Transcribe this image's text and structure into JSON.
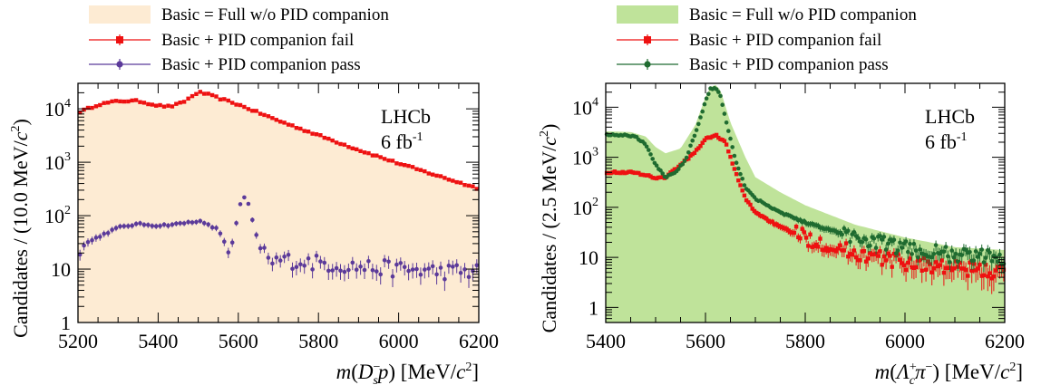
{
  "figure": {
    "panels": [
      {
        "id": "left",
        "legend": [
          {
            "label": "Basic = Full w/o PID companion",
            "style": "fill",
            "color": "#fdebd3"
          },
          {
            "label": "Basic + PID companion fail",
            "style": "errorbar-square",
            "color": "#ee1111"
          },
          {
            "label": "Basic + PID companion pass",
            "style": "errorbar-circle",
            "color": "#5b3a9a"
          }
        ],
        "annotation": {
          "experiment": "LHCb",
          "lumi": "6 fb",
          "lumi_sup": "-1"
        },
        "ylabel_pre": "Candidates / (10.0 MeV/",
        "ylabel_c": "c",
        "ylabel_sup": "2",
        "ylabel_post": ")",
        "xlabel_parts": [
          "m",
          "(",
          "D",
          "−",
          "s",
          "p",
          ") [MeV/",
          "c",
          "2",
          "]"
        ]
      },
      {
        "id": "right",
        "legend": [
          {
            "label": "Basic = Full w/o PID companion",
            "style": "fill",
            "color": "#bfe39a"
          },
          {
            "label": "Basic + PID companion fail",
            "style": "errorbar-square",
            "color": "#ee1111"
          },
          {
            "label": "Basic + PID companion pass",
            "style": "errorbar-circle",
            "color": "#1f6b30"
          }
        ],
        "annotation": {
          "experiment": "LHCb",
          "lumi": "6 fb",
          "lumi_sup": "-1"
        },
        "ylabel_pre": "Candidates / (2.5 MeV/",
        "ylabel_c": "c",
        "ylabel_sup": "2",
        "ylabel_post": ")",
        "xlabel_parts": [
          "m",
          "(",
          "Λ",
          "+",
          "c",
          "π",
          "−",
          ") [MeV/",
          "c",
          "2",
          "]"
        ]
      }
    ]
  },
  "chart_data": [
    {
      "type": "area",
      "panel": "left",
      "xlabel": "m(D_s^- p) [MeV/c^2]",
      "ylabel": "Candidates / (10.0 MeV/c^2)",
      "xlim": [
        5200,
        6200
      ],
      "ylim": [
        1,
        30000
      ],
      "yscale": "log",
      "xticks": [
        5200,
        5400,
        5600,
        5800,
        6000,
        6200
      ],
      "yticks": [
        {
          "v": 1,
          "label": "1"
        },
        {
          "v": 10,
          "label": "10"
        },
        {
          "v": 100,
          "label": "10",
          "sup": "2"
        },
        {
          "v": 1000,
          "label": "10",
          "sup": "3"
        },
        {
          "v": 10000,
          "label": "10",
          "sup": "4"
        }
      ],
      "series": [
        {
          "name": "Basic = Full w/o PID companion",
          "kind": "fill",
          "color": "#fdebd3",
          "x": [
            5200,
            5250,
            5300,
            5350,
            5400,
            5430,
            5460,
            5500,
            5520,
            5550,
            5600,
            5700,
            5800,
            5900,
            6000,
            6100,
            6200
          ],
          "y": [
            8500,
            12000,
            14000,
            14000,
            11500,
            11000,
            13000,
            20500,
            19000,
            16000,
            12000,
            6000,
            3200,
            1700,
            950,
            550,
            320
          ]
        },
        {
          "name": "Basic + PID companion fail",
          "kind": "points",
          "color": "#ee1111",
          "x": [
            5200,
            5250,
            5300,
            5350,
            5400,
            5430,
            5460,
            5500,
            5520,
            5550,
            5600,
            5700,
            5800,
            5900,
            6000,
            6100,
            6200
          ],
          "y": [
            8500,
            12000,
            14000,
            14000,
            11500,
            11000,
            13000,
            20500,
            19000,
            16000,
            12000,
            6000,
            3200,
            1700,
            950,
            550,
            320
          ]
        },
        {
          "name": "Basic + PID companion pass",
          "kind": "points",
          "color": "#5b3a9a",
          "x": [
            5200,
            5250,
            5300,
            5350,
            5400,
            5450,
            5500,
            5550,
            5580,
            5600,
            5610,
            5620,
            5630,
            5640,
            5660,
            5680,
            5700,
            5800,
            5900,
            6000,
            6100,
            6200
          ],
          "y": [
            25,
            40,
            60,
            70,
            65,
            70,
            80,
            55,
            20,
            110,
            230,
            210,
            130,
            50,
            25,
            12,
            15,
            13,
            11,
            10,
            9,
            9
          ]
        }
      ]
    },
    {
      "type": "area",
      "panel": "right",
      "xlabel": "m(Λ_c^+ π^-) [MeV/c^2]",
      "ylabel": "Candidates / (2.5 MeV/c^2)",
      "xlim": [
        5400,
        6200
      ],
      "ylim": [
        0.5,
        30000
      ],
      "yscale": "log",
      "xticks": [
        5400,
        5600,
        5800,
        6000,
        6200
      ],
      "yticks": [
        {
          "v": 1,
          "label": "1"
        },
        {
          "v": 10,
          "label": "10"
        },
        {
          "v": 100,
          "label": "10",
          "sup": "2"
        },
        {
          "v": 1000,
          "label": "10",
          "sup": "3"
        },
        {
          "v": 10000,
          "label": "10",
          "sup": "4"
        }
      ],
      "series": [
        {
          "name": "Basic = Full w/o PID companion",
          "kind": "fill",
          "color": "#bfe39a",
          "x": [
            5400,
            5450,
            5480,
            5500,
            5520,
            5550,
            5580,
            5600,
            5610,
            5620,
            5630,
            5650,
            5680,
            5700,
            5750,
            5800,
            5900,
            6000,
            6100,
            6200
          ],
          "y": [
            3300,
            3200,
            2600,
            1600,
            1200,
            1500,
            4500,
            16000,
            25000,
            28000,
            22000,
            5000,
            1000,
            400,
            200,
            110,
            45,
            25,
            16,
            14
          ]
        },
        {
          "name": "Basic + PID companion fail",
          "kind": "points",
          "color": "#ee1111",
          "x": [
            5400,
            5450,
            5480,
            5500,
            5520,
            5550,
            5580,
            5600,
            5620,
            5640,
            5660,
            5680,
            5700,
            5750,
            5800,
            5900,
            6000,
            6100,
            6200
          ],
          "y": [
            500,
            500,
            450,
            380,
            400,
            700,
            1300,
            2300,
            2800,
            2000,
            500,
            150,
            80,
            40,
            25,
            12,
            8,
            6,
            5
          ]
        },
        {
          "name": "Basic + PID companion pass",
          "kind": "points",
          "color": "#1f6b30",
          "x": [
            5400,
            5430,
            5460,
            5480,
            5500,
            5520,
            5540,
            5560,
            5580,
            5600,
            5610,
            5620,
            5630,
            5640,
            5660,
            5680,
            5700,
            5750,
            5800,
            5900,
            6000,
            6100,
            6200
          ],
          "y": [
            2800,
            2800,
            2600,
            1800,
            700,
            400,
            500,
            900,
            3000,
            13000,
            23000,
            25000,
            17000,
            6000,
            900,
            250,
            150,
            80,
            50,
            25,
            15,
            11,
            10
          ]
        }
      ]
    }
  ]
}
